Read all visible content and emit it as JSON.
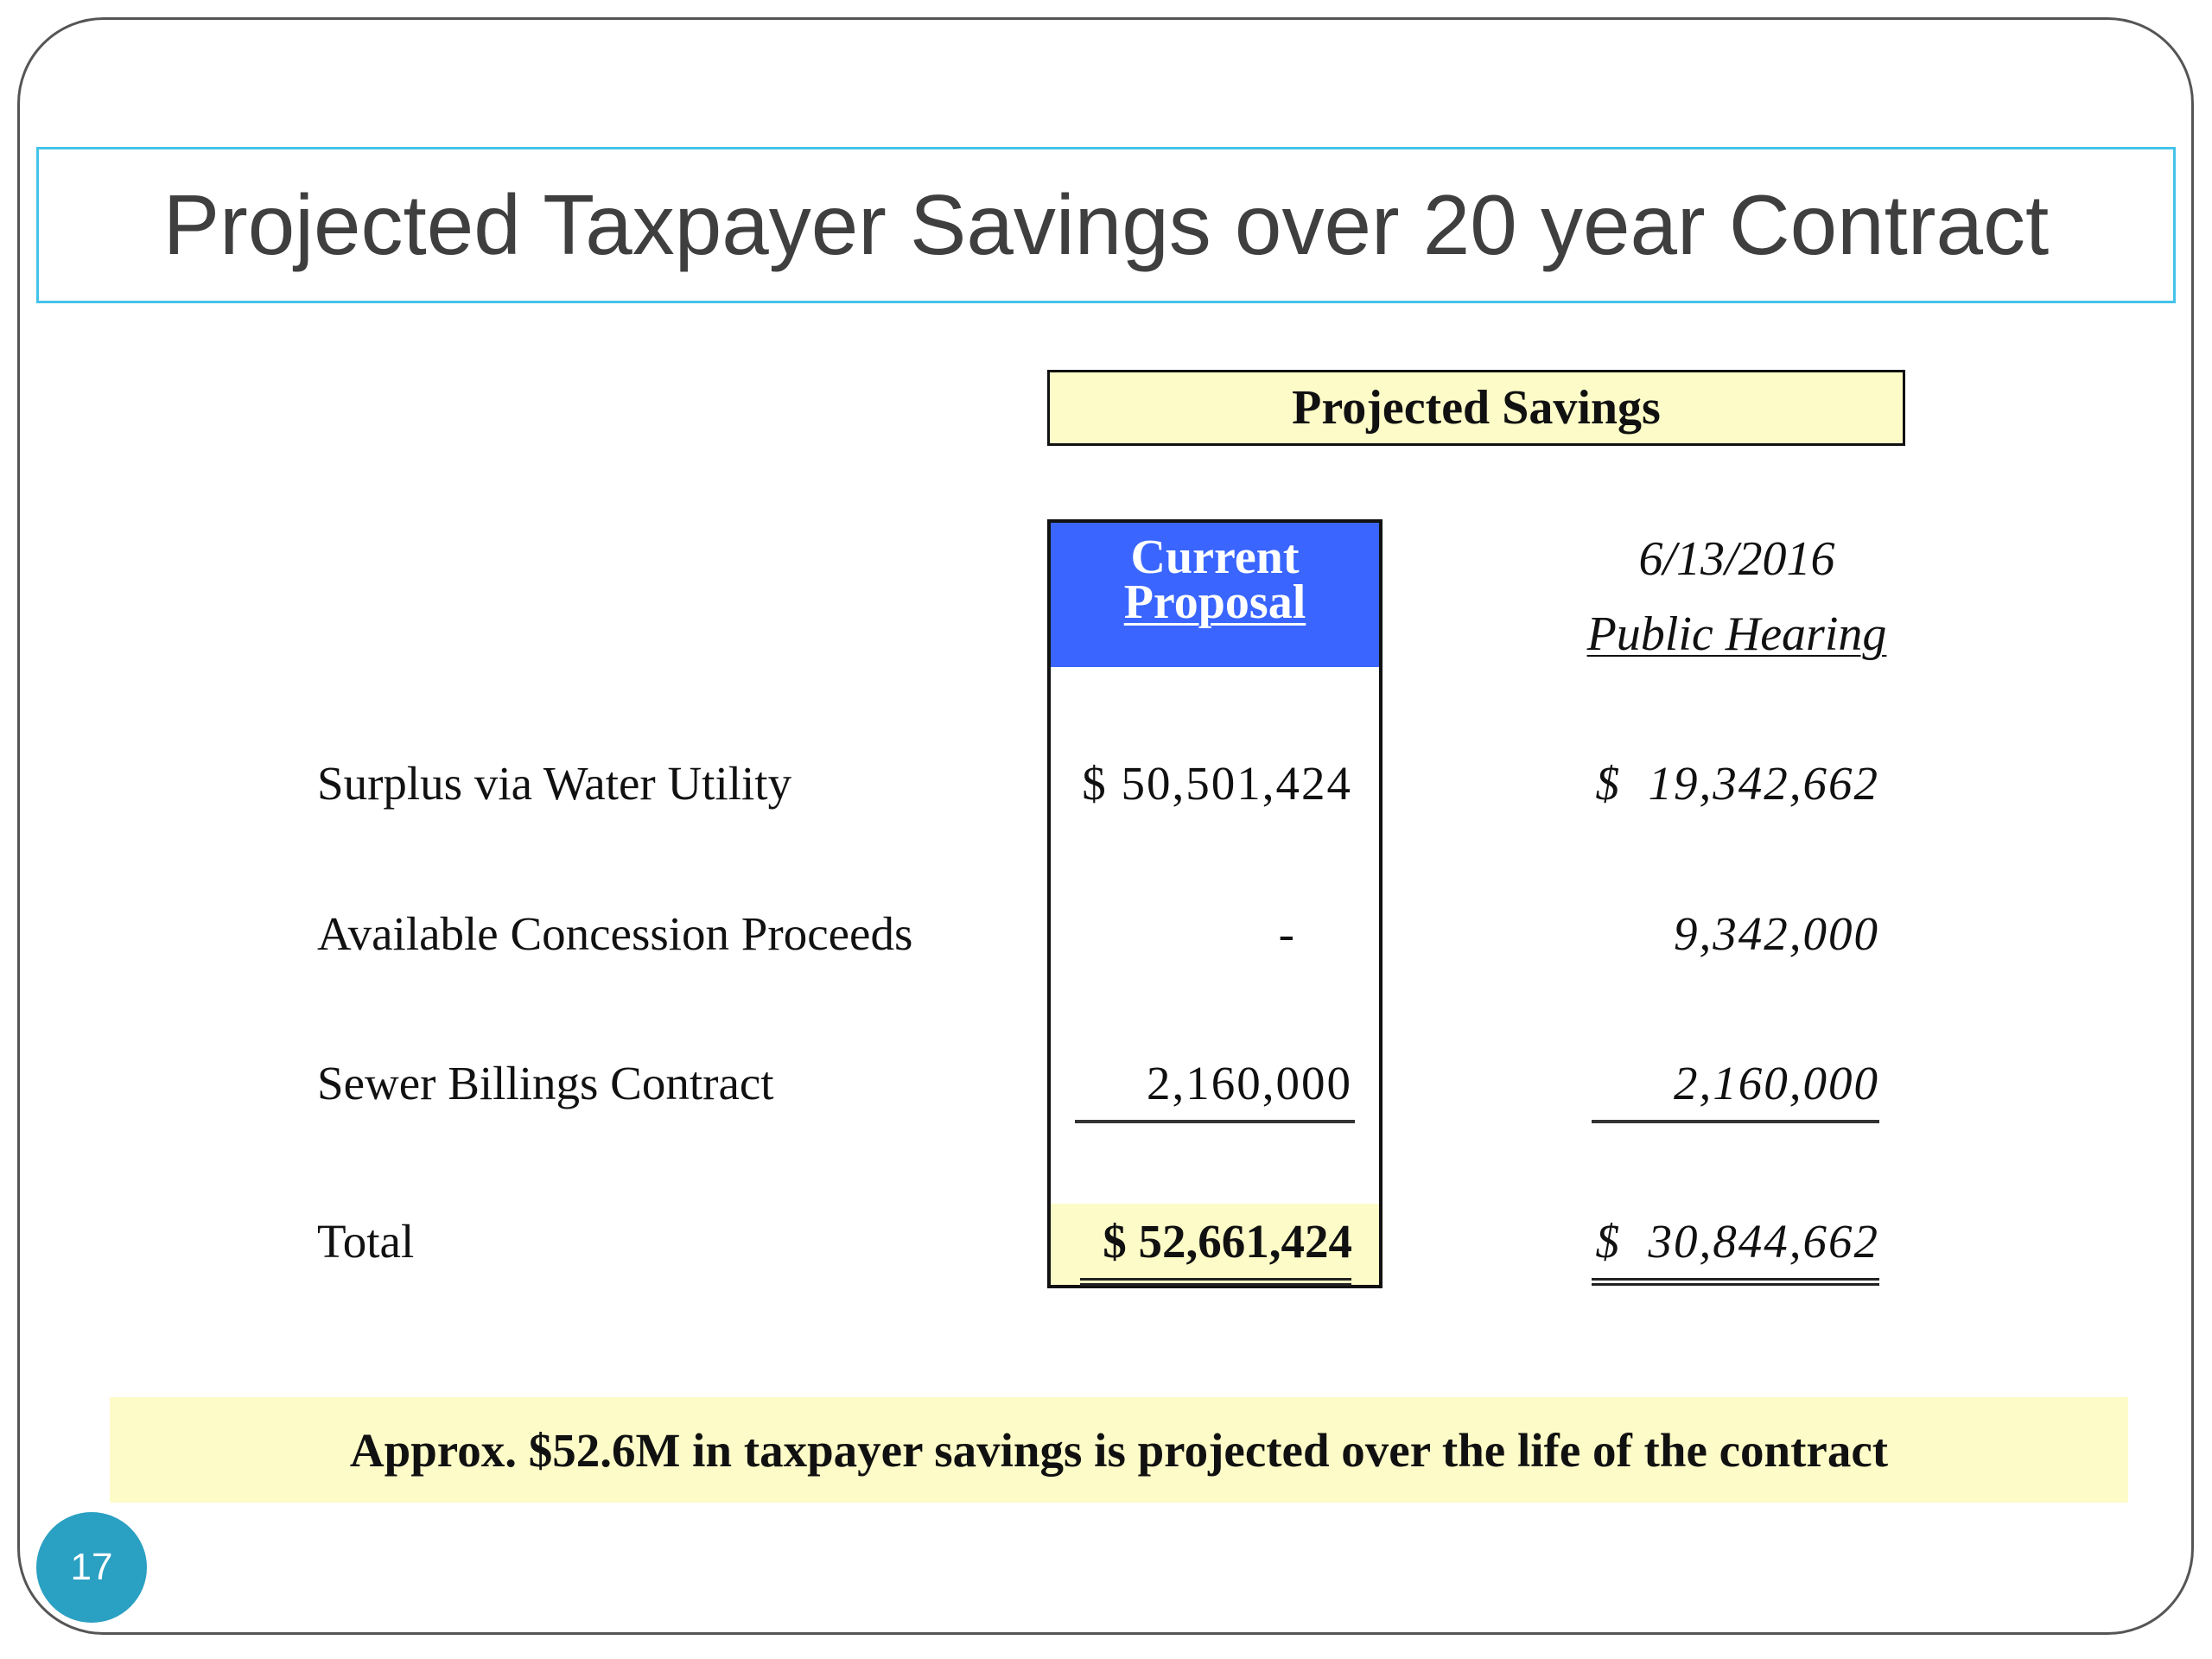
{
  "title": "Projected Taxpayer Savings over 20 year Contract",
  "table": {
    "group_header": "Projected Savings",
    "columns": [
      {
        "line1": "Current",
        "line2": "Proposal"
      },
      {
        "line1": "6/13/2016",
        "line2": "Public Hearing"
      }
    ],
    "rows": [
      {
        "label": "Surplus via Water Utility",
        "current": "$ 50,501,424",
        "hearing": "$  19,342,662"
      },
      {
        "label": "Available Concession Proceeds",
        "current": "-",
        "hearing": "9,342,000"
      },
      {
        "label": "Sewer Billings Contract",
        "current": "2,160,000",
        "hearing": "2,160,000"
      },
      {
        "label": "Total",
        "current": "$ 52,661,424",
        "hearing": "$  30,844,662"
      }
    ]
  },
  "footer_note": "Approx. $52.6M in taxpayer savings is projected over the life of the contract",
  "page_number": "17",
  "colors": {
    "title_border": "#45c3ea",
    "current_header": "#3a66ff",
    "highlight": "#fdfcc8",
    "page_badge": "#2aa0c2"
  }
}
